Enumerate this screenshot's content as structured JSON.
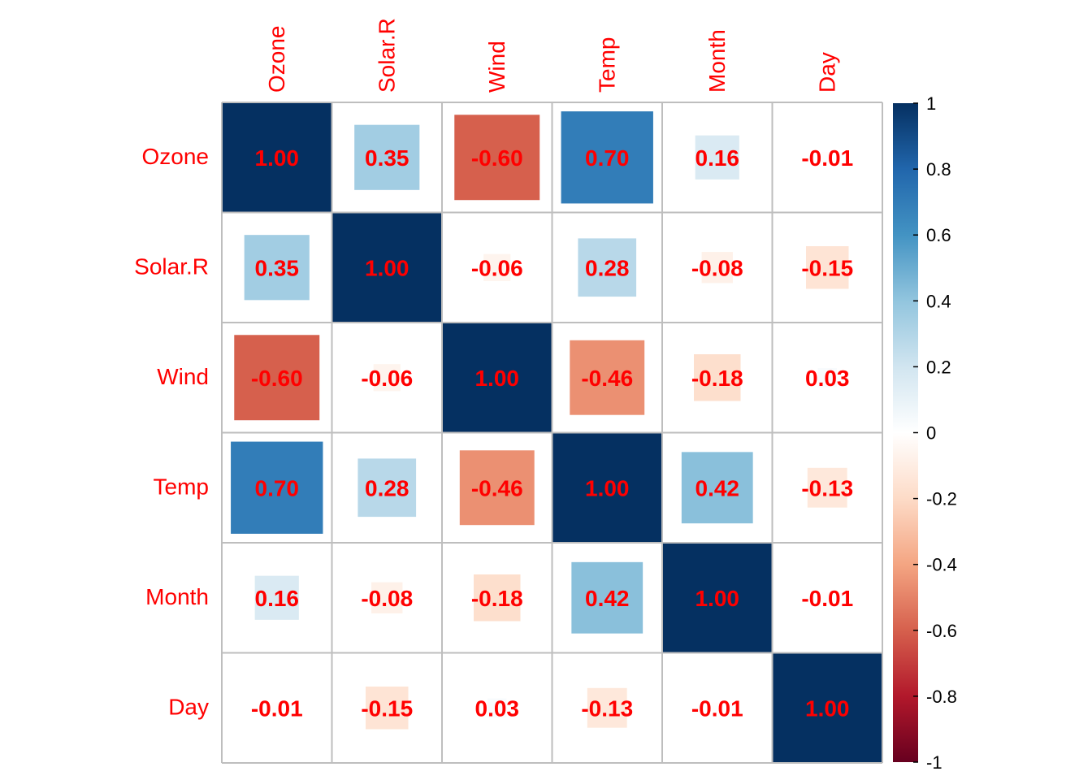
{
  "chart_data": {
    "type": "heatmap",
    "title": "",
    "variables": [
      "Ozone",
      "Solar.R",
      "Wind",
      "Temp",
      "Month",
      "Day"
    ],
    "matrix": [
      [
        1.0,
        0.35,
        -0.6,
        0.7,
        0.16,
        -0.01
      ],
      [
        0.35,
        1.0,
        -0.06,
        0.28,
        -0.08,
        -0.15
      ],
      [
        -0.6,
        -0.06,
        1.0,
        -0.46,
        -0.18,
        0.03
      ],
      [
        0.7,
        0.28,
        -0.46,
        1.0,
        0.42,
        -0.13
      ],
      [
        0.16,
        -0.08,
        -0.18,
        0.42,
        1.0,
        -0.01
      ],
      [
        -0.01,
        -0.15,
        0.03,
        -0.13,
        -0.01,
        1.0
      ]
    ],
    "cell_labels": [
      [
        "1.00",
        "0.35",
        "-0.60",
        "0.70",
        "0.16",
        "-0.01"
      ],
      [
        "0.35",
        "1.00",
        "-0.06",
        "0.28",
        "-0.08",
        "-0.15"
      ],
      [
        "-0.60",
        "-0.06",
        "1.00",
        "-0.46",
        "-0.18",
        "0.03"
      ],
      [
        "0.70",
        "0.28",
        "-0.46",
        "1.00",
        "0.42",
        "-0.13"
      ],
      [
        "0.16",
        "-0.08",
        "-0.18",
        "0.42",
        "1.00",
        "-0.01"
      ],
      [
        "-0.01",
        "-0.15",
        "0.03",
        "-0.13",
        "-0.01",
        "1.00"
      ]
    ],
    "method": "square",
    "colorbar": {
      "range": [
        -1,
        1
      ],
      "tick_values": [
        1,
        0.8,
        0.6,
        0.4,
        0.2,
        0,
        -0.2,
        -0.4,
        -0.6,
        -0.8,
        -1
      ],
      "tick_labels": [
        "1",
        "0.8",
        "0.6",
        "0.4",
        "0.2",
        "0",
        "-0.2",
        "-0.4",
        "-0.6",
        "-0.8",
        "-1"
      ],
      "placement": "right"
    },
    "colors": {
      "palette": [
        "#67001F",
        "#B2182B",
        "#D6604D",
        "#F4A582",
        "#FDDBC7",
        "#FFFFFF",
        "#D1E5F0",
        "#92C5DE",
        "#4393C3",
        "#2166AC",
        "#053061"
      ],
      "label_color": "#FF0000",
      "grid_color": "#BEBEBE",
      "tick_label_color": "#000000"
    },
    "grid": true
  }
}
